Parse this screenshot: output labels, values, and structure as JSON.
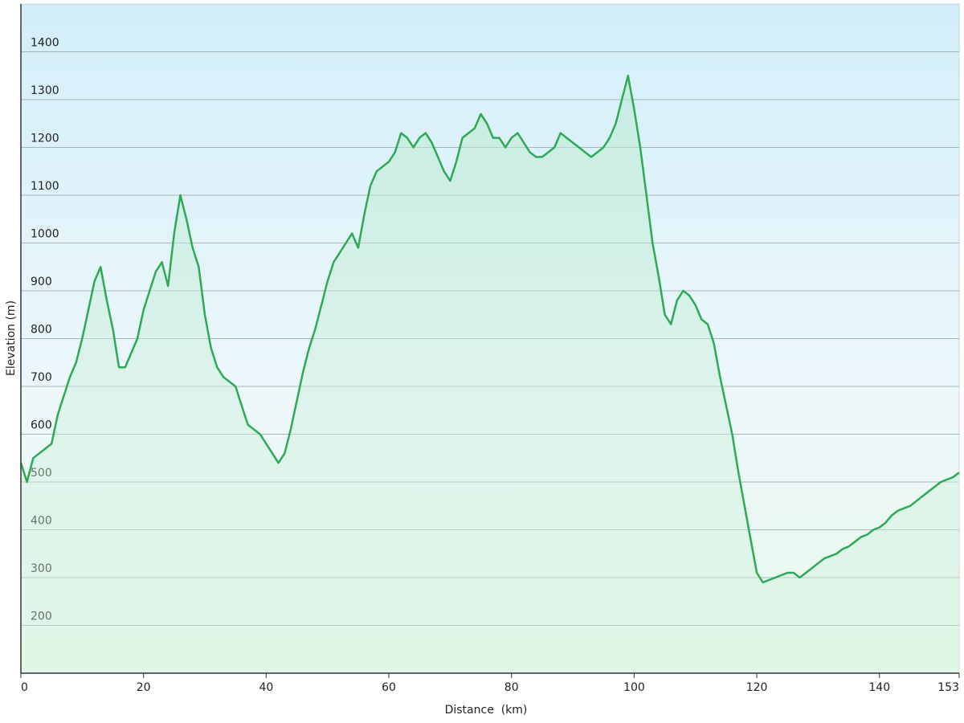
{
  "chart_data": {
    "type": "area",
    "xlabel": "Distance  (km)",
    "ylabel": "Elevation (m)",
    "color": "#2eaa55",
    "grid": true,
    "xlim": [
      0,
      153
    ],
    "xticks": [
      0,
      20,
      40,
      60,
      80,
      100,
      120,
      140,
      153
    ],
    "ylim": [
      100,
      1500
    ],
    "yticks": [
      200,
      300,
      400,
      500,
      600,
      700,
      800,
      900,
      1000,
      1100,
      1200,
      1300,
      1400
    ],
    "x": [
      0,
      1,
      2,
      3,
      4,
      5,
      6,
      7,
      8,
      9,
      10,
      11,
      12,
      13,
      14,
      15,
      16,
      17,
      18,
      19,
      20,
      21,
      22,
      23,
      24,
      25,
      26,
      27,
      28,
      29,
      30,
      31,
      32,
      33,
      34,
      35,
      36,
      37,
      38,
      39,
      40,
      41,
      42,
      43,
      44,
      45,
      46,
      47,
      48,
      49,
      50,
      51,
      52,
      53,
      54,
      55,
      56,
      57,
      58,
      59,
      60,
      61,
      62,
      63,
      64,
      65,
      66,
      67,
      68,
      69,
      70,
      71,
      72,
      73,
      74,
      75,
      76,
      77,
      78,
      79,
      80,
      81,
      82,
      83,
      84,
      85,
      86,
      87,
      88,
      89,
      90,
      91,
      92,
      93,
      94,
      95,
      96,
      97,
      98,
      99,
      100,
      101,
      102,
      103,
      104,
      105,
      106,
      107,
      108,
      109,
      110,
      111,
      112,
      113,
      114,
      115,
      116,
      117,
      118,
      119,
      120,
      121,
      122,
      123,
      124,
      125,
      126,
      127,
      128,
      129,
      130,
      131,
      132,
      133,
      134,
      135,
      136,
      137,
      138,
      139,
      140,
      141,
      142,
      143,
      144,
      145,
      146,
      147,
      148,
      149,
      150,
      151,
      152,
      153
    ],
    "values": [
      540,
      500,
      550,
      560,
      570,
      580,
      640,
      680,
      720,
      750,
      800,
      860,
      920,
      950,
      880,
      820,
      740,
      740,
      770,
      800,
      860,
      900,
      940,
      960,
      910,
      1020,
      1100,
      1050,
      990,
      950,
      850,
      780,
      740,
      720,
      710,
      700,
      660,
      620,
      610,
      600,
      580,
      560,
      540,
      560,
      610,
      670,
      730,
      780,
      820,
      870,
      920,
      960,
      980,
      1000,
      1020,
      990,
      1060,
      1120,
      1150,
      1160,
      1170,
      1190,
      1230,
      1220,
      1200,
      1220,
      1230,
      1210,
      1180,
      1150,
      1130,
      1170,
      1220,
      1230,
      1240,
      1270,
      1250,
      1220,
      1220,
      1200,
      1220,
      1230,
      1210,
      1190,
      1180,
      1180,
      1190,
      1200,
      1230,
      1220,
      1210,
      1200,
      1190,
      1180,
      1190,
      1200,
      1220,
      1250,
      1300,
      1350,
      1280,
      1200,
      1100,
      1000,
      930,
      850,
      830,
      880,
      900,
      890,
      870,
      840,
      830,
      790,
      720,
      660,
      600,
      520,
      450,
      380,
      310,
      290,
      295,
      300,
      305,
      310,
      310,
      300,
      310,
      320,
      330,
      340,
      345,
      350,
      360,
      365,
      375,
      385,
      390,
      400,
      405,
      415,
      430,
      440,
      445,
      450,
      460,
      470,
      480,
      490,
      500,
      505,
      510,
      520
    ]
  }
}
